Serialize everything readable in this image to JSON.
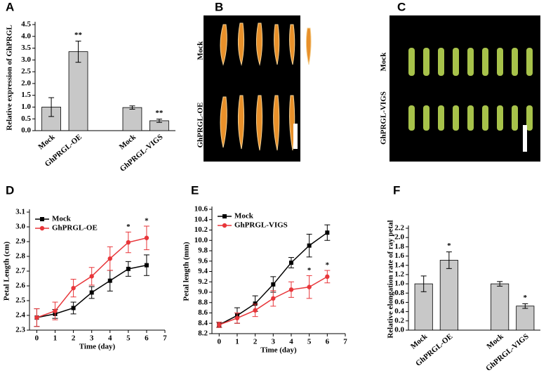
{
  "chart_data": [
    {
      "type": "bar",
      "panel_label": "A",
      "y_label": "Relative expression of GhPRGL",
      "categories": [
        "Mock",
        "GhPRGL-OE",
        "Mock",
        "GhPRGL-VIGS"
      ],
      "values": [
        1.0,
        3.35,
        0.98,
        0.42
      ],
      "errors": [
        0.4,
        0.45,
        0.07,
        0.07
      ],
      "annotations": [
        null,
        "**",
        null,
        "**"
      ],
      "color": "#c8c8c8",
      "ylim": [
        0,
        4.5
      ],
      "yticks": [
        {
          "value": 0,
          "label": "0.0"
        },
        0.5,
        {
          "value": 1,
          "label": "1.0"
        },
        1.5,
        {
          "value": 2,
          "label": "2.0"
        },
        2.5,
        {
          "value": 3,
          "label": "3.0"
        },
        3.5,
        {
          "value": 4,
          "label": "4.0"
        },
        4.5
      ]
    },
    {
      "type": "line",
      "panel_label": "D",
      "x_label": "Time (day)",
      "y_label": "Petal Length (cm)",
      "x": [
        0,
        1,
        2,
        3,
        4,
        5,
        6
      ],
      "series": [
        {
          "name": "Mock",
          "color": "#000000",
          "marker": "square",
          "values": [
            2.385,
            2.41,
            2.45,
            2.555,
            2.635,
            2.715,
            2.74
          ],
          "errors": [
            0.06,
            0.03,
            0.04,
            0.04,
            0.07,
            0.05,
            0.07
          ],
          "annotations": [
            null,
            null,
            null,
            null,
            null,
            null,
            null
          ]
        },
        {
          "name": "GhPRGL-OE",
          "color": "#e8363a",
          "marker": "circle",
          "values": [
            2.385,
            2.43,
            2.585,
            2.665,
            2.785,
            2.895,
            2.925
          ],
          "errors": [
            0.06,
            0.06,
            0.06,
            0.06,
            0.08,
            0.07,
            0.08
          ],
          "annotations": [
            null,
            null,
            null,
            null,
            null,
            "*",
            "*"
          ]
        }
      ],
      "xlim": [
        -0.4,
        7
      ],
      "xticks": [
        0,
        1,
        2,
        3,
        4,
        5,
        6,
        7
      ],
      "ylim": [
        2.3,
        3.1
      ],
      "yticks": [
        2.3,
        2.4,
        2.5,
        2.6,
        2.7,
        2.8,
        2.9,
        {
          "value": 3,
          "label": "3.0"
        },
        3.1
      ]
    },
    {
      "type": "line",
      "panel_label": "E",
      "x_label": "Time (day)",
      "y_label": "Petal length (mm)",
      "x": [
        0,
        1,
        2,
        3,
        4,
        5,
        6
      ],
      "series": [
        {
          "name": "Mock",
          "color": "#000000",
          "marker": "square",
          "values": [
            8.37,
            8.55,
            8.78,
            9.15,
            9.57,
            9.9,
            10.15
          ],
          "errors": [
            0.05,
            0.15,
            0.15,
            0.15,
            0.1,
            0.22,
            0.15
          ],
          "annotations": [
            null,
            null,
            null,
            null,
            null,
            null,
            null
          ]
        },
        {
          "name": "GhPRGL-VIGS",
          "color": "#e8363a",
          "marker": "circle",
          "values": [
            8.37,
            8.5,
            8.65,
            8.88,
            9.05,
            9.1,
            9.3
          ],
          "errors": [
            0.05,
            0.1,
            0.12,
            0.15,
            0.15,
            0.22,
            0.12
          ],
          "annotations": [
            null,
            null,
            null,
            null,
            null,
            "*",
            "*"
          ]
        }
      ],
      "xlim": [
        -0.4,
        7
      ],
      "xticks": [
        0,
        1,
        2,
        3,
        4,
        5,
        6,
        7
      ],
      "ylim": [
        8.2,
        10.6
      ],
      "yticks": [
        8.2,
        8.4,
        8.6,
        8.8,
        {
          "value": 9,
          "label": "9.0"
        },
        9.2,
        9.4,
        9.6,
        9.8,
        {
          "value": 10,
          "label": "10.0"
        },
        10.2,
        10.4,
        10.6
      ]
    },
    {
      "type": "bar",
      "panel_label": "F",
      "y_label": "Relative elongation rate of ray petal",
      "categories": [
        "Mock",
        "GhPRGL-OE",
        "Mock",
        "GhPRGL-VIGS"
      ],
      "values": [
        1.0,
        1.51,
        1.0,
        0.52
      ],
      "errors": [
        0.17,
        0.18,
        0.05,
        0.05
      ],
      "annotations": [
        null,
        "*",
        null,
        "*"
      ],
      "color": "#c8c8c8",
      "ylim": [
        0,
        2.2
      ],
      "yticks": [
        {
          "value": 0,
          "label": "0.0"
        },
        0.2,
        0.4,
        0.6,
        0.8,
        {
          "value": 1,
          "label": "1.0"
        },
        1.2,
        1.4,
        1.6,
        1.8,
        {
          "value": 2,
          "label": "2.0"
        },
        2.2
      ]
    }
  ],
  "images": [
    {
      "panel_label": "B",
      "labels": [
        "Mock",
        "GhPRGL-OE"
      ]
    },
    {
      "panel_label": "C",
      "labels": [
        "Mock",
        "GhPRGL-VIGS"
      ]
    }
  ]
}
